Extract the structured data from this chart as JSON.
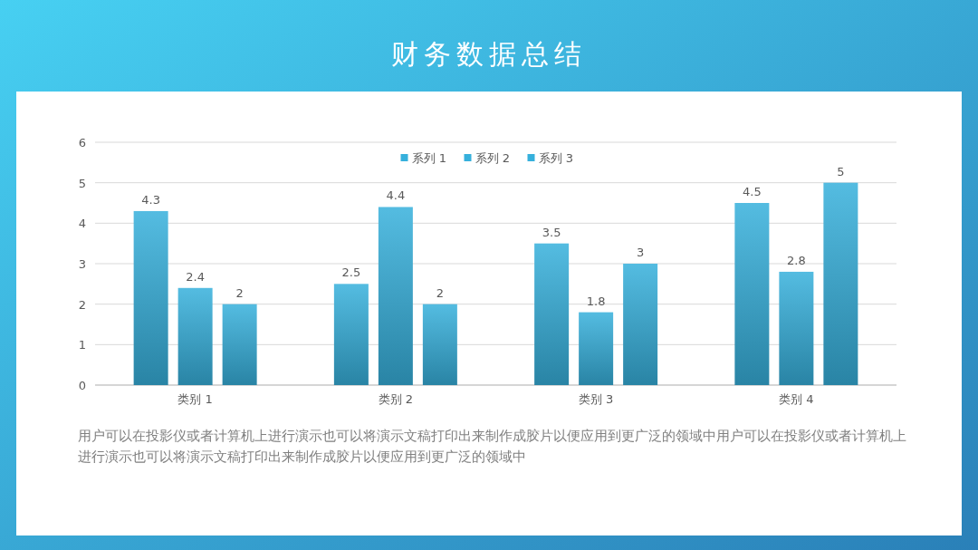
{
  "chart_data": {
    "type": "bar",
    "title": "财务数据总结",
    "categories": [
      "类别 1",
      "类别 2",
      "类别 3",
      "类别 4"
    ],
    "series": [
      {
        "name": "系列 1",
        "color": "#36b0dc",
        "values": [
          4.3,
          2.5,
          3.5,
          4.5
        ]
      },
      {
        "name": "系列 2",
        "color": "#36b0dc",
        "values": [
          2.4,
          4.4,
          1.8,
          2.8
        ]
      },
      {
        "name": "系列 3",
        "color": "#36b0dc",
        "values": [
          2,
          2,
          3,
          5
        ]
      }
    ],
    "ylim": [
      0,
      6
    ],
    "yticks": [
      0,
      1,
      2,
      3,
      4,
      5,
      6
    ],
    "grid": "y",
    "legend": "top",
    "data_labels": true,
    "annotations": [
      "用户可以在投影仪或者计算机上进行演示也可以将演示文稿打印出来制作成胶片以便应用到更广泛的领域中用户可以在投影仪或者计算机上进行演示也可以将演示文稿打印出来制作成胶片以便应用到更广泛的领域中"
    ]
  }
}
